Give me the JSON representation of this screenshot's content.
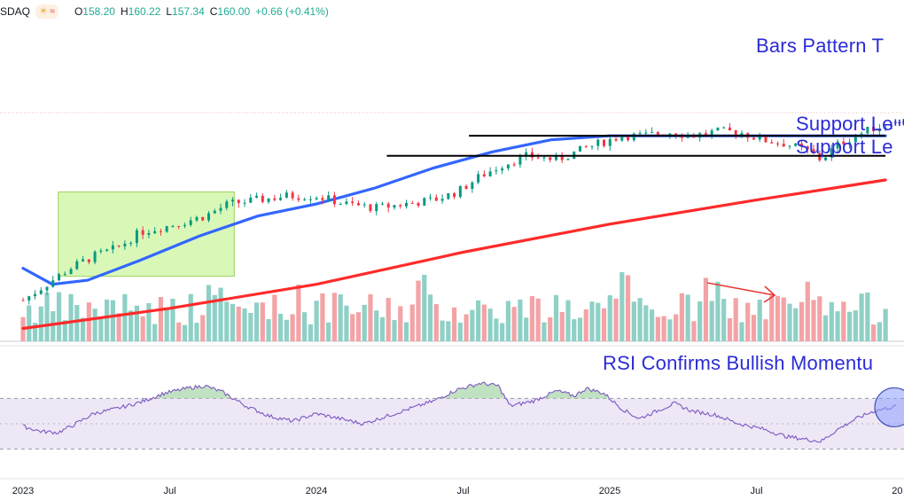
{
  "header": {
    "symbol": "SDAQ",
    "badge": {
      "icons": [
        "sun-cloud-icon",
        "wave-icon"
      ]
    },
    "ohlc": [
      {
        "key": "O",
        "value": "158.20"
      },
      {
        "key": "H",
        "value": "160.22"
      },
      {
        "key": "L",
        "value": "157.34"
      },
      {
        "key": "C",
        "value": "160.00"
      }
    ],
    "change": "+0.66 (+0.41%)"
  },
  "annotations": {
    "bars_pattern": "Bars Pattern T",
    "support_1": "Support Le",
    "support_2": "Support Le",
    "rsi": "RSI Confirms Bullish Momentu"
  },
  "colors": {
    "up": "#089981",
    "down": "#f23645",
    "vol_up": "#8fd0c6",
    "vol_down": "#f3a3a6",
    "ma50": "#3366ff",
    "ma200": "#ff2a2a",
    "rsi_line": "#7e57c2",
    "rsi_band": "#ede7f6",
    "annotation": "#2b2bd6",
    "highlight_box": "#ccf5a0",
    "bars_pattern": "#2b2bd6"
  },
  "chart_data": [
    {
      "type": "candlestick",
      "x_axis": {
        "ticks": [
          "2023",
          "Jul",
          "2024",
          "Jul",
          "2025",
          "Jul",
          "20"
        ]
      },
      "support_levels": [
        157,
        152
      ],
      "close_points": [
        [
          0.0,
          116
        ],
        [
          0.08,
          120
        ],
        [
          0.16,
          124
        ],
        [
          0.24,
          127
        ],
        [
          0.32,
          129
        ],
        [
          0.4,
          133
        ],
        [
          0.52,
          135
        ],
        [
          0.62,
          137
        ],
        [
          0.7,
          140
        ],
        [
          0.8,
          141
        ],
        [
          0.9,
          142
        ],
        [
          1.0,
          142
        ],
        [
          1.1,
          140
        ],
        [
          1.2,
          139
        ],
        [
          1.3,
          140
        ],
        [
          1.4,
          141
        ],
        [
          1.48,
          143
        ],
        [
          1.56,
          147
        ],
        [
          1.64,
          150
        ],
        [
          1.72,
          152
        ],
        [
          1.82,
          151
        ],
        [
          1.92,
          154
        ],
        [
          2.0,
          156
        ],
        [
          2.04,
          157
        ],
        [
          2.12,
          157
        ],
        [
          2.2,
          158
        ],
        [
          2.28,
          157
        ],
        [
          2.36,
          158
        ],
        [
          2.44,
          158
        ],
        [
          2.52,
          156
        ],
        [
          2.6,
          155
        ],
        [
          2.68,
          153
        ],
        [
          2.72,
          151
        ],
        [
          2.78,
          155
        ],
        [
          2.84,
          157
        ],
        [
          2.9,
          159
        ],
        [
          2.98,
          160
        ]
      ],
      "ma50_points": [
        [
          0.0,
          124
        ],
        [
          0.1,
          120
        ],
        [
          0.22,
          121
        ],
        [
          0.4,
          126
        ],
        [
          0.6,
          132
        ],
        [
          0.8,
          137
        ],
        [
          1.0,
          140
        ],
        [
          1.2,
          144
        ],
        [
          1.4,
          149
        ],
        [
          1.6,
          153
        ],
        [
          1.8,
          156
        ],
        [
          2.0,
          157
        ],
        [
          2.2,
          157
        ],
        [
          2.4,
          157
        ],
        [
          2.6,
          157
        ],
        [
          2.8,
          157
        ],
        [
          2.94,
          157
        ]
      ],
      "ma200_points": [
        [
          0.0,
          109
        ],
        [
          0.5,
          114
        ],
        [
          1.0,
          120
        ],
        [
          1.5,
          128
        ],
        [
          2.0,
          135
        ],
        [
          2.5,
          141
        ],
        [
          2.94,
          146
        ]
      ],
      "bars_pattern_points": [
        [
          2.98,
          160
        ],
        [
          3.1,
          164
        ],
        [
          3.2,
          170
        ],
        [
          3.3,
          174
        ],
        [
          3.44,
          176
        ],
        [
          3.56,
          176
        ]
      ],
      "highlight_box": {
        "x": [
          0.12,
          0.72
        ],
        "y": [
          122,
          143
        ]
      },
      "ylim": [
        108,
        182
      ]
    },
    {
      "type": "bar",
      "name": "volume",
      "ylim": [
        0,
        1
      ]
    },
    {
      "type": "line",
      "name": "RSI",
      "levels": [
        70,
        30
      ],
      "ylim": [
        15,
        85
      ],
      "points": [
        [
          0.0,
          48
        ],
        [
          0.06,
          44
        ],
        [
          0.12,
          43
        ],
        [
          0.18,
          50
        ],
        [
          0.24,
          58
        ],
        [
          0.32,
          62
        ],
        [
          0.4,
          67
        ],
        [
          0.48,
          74
        ],
        [
          0.56,
          78
        ],
        [
          0.62,
          80
        ],
        [
          0.68,
          75
        ],
        [
          0.76,
          64
        ],
        [
          0.84,
          56
        ],
        [
          0.92,
          52
        ],
        [
          1.0,
          58
        ],
        [
          1.08,
          54
        ],
        [
          1.16,
          50
        ],
        [
          1.24,
          56
        ],
        [
          1.32,
          62
        ],
        [
          1.4,
          68
        ],
        [
          1.48,
          77
        ],
        [
          1.56,
          82
        ],
        [
          1.62,
          80
        ],
        [
          1.66,
          64
        ],
        [
          1.74,
          68
        ],
        [
          1.82,
          76
        ],
        [
          1.88,
          72
        ],
        [
          1.92,
          78
        ],
        [
          1.98,
          74
        ],
        [
          2.04,
          62
        ],
        [
          2.1,
          54
        ],
        [
          2.16,
          60
        ],
        [
          2.22,
          66
        ],
        [
          2.28,
          60
        ],
        [
          2.36,
          57
        ],
        [
          2.44,
          50
        ],
        [
          2.52,
          46
        ],
        [
          2.6,
          40
        ],
        [
          2.66,
          38
        ],
        [
          2.72,
          36
        ],
        [
          2.78,
          46
        ],
        [
          2.84,
          54
        ],
        [
          2.9,
          60
        ],
        [
          2.98,
          64
        ]
      ]
    }
  ]
}
